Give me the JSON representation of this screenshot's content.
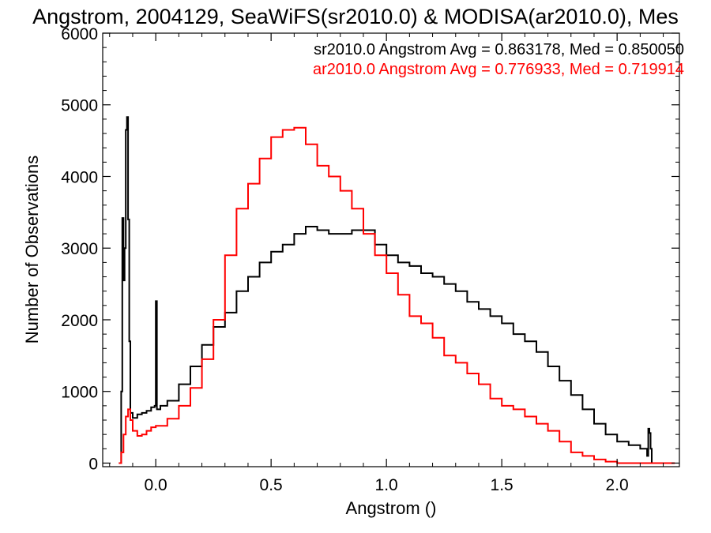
{
  "chart_data": {
    "type": "line",
    "title": "Angstrom, 2004129, SeaWiFS(sr2010.0) & MODISA(ar2010.0), Mes",
    "xlabel": "Angstrom ()",
    "ylabel": "Number of Observations",
    "xlim": [
      -0.23,
      2.27
    ],
    "ylim": [
      -50,
      6000
    ],
    "x_ticks": [
      "0.0",
      "0.5",
      "1.0",
      "1.5",
      "2.0"
    ],
    "y_ticks": [
      "0",
      "1000",
      "2000",
      "3000",
      "4000",
      "5000",
      "6000"
    ],
    "grid": false,
    "annotations": [
      {
        "text": "sr2010.0 Angstrom Avg = 0.863178, Med = 0.850050",
        "color": "#000000"
      },
      {
        "text": "ar2010.0 Angstrom Avg = 0.776933, Med = 0.719914",
        "color": "#ff0000"
      }
    ],
    "series": [
      {
        "color": "#000000",
        "x": [
          -0.16,
          -0.15,
          -0.145,
          -0.14,
          -0.135,
          -0.13,
          -0.125,
          -0.12,
          -0.115,
          -0.11,
          -0.1,
          -0.08,
          -0.06,
          -0.04,
          -0.02,
          -0.005,
          0.0,
          0.005,
          0.02,
          0.05,
          0.1,
          0.15,
          0.2,
          0.25,
          0.3,
          0.35,
          0.4,
          0.45,
          0.5,
          0.55,
          0.6,
          0.65,
          0.7,
          0.75,
          0.8,
          0.85,
          0.9,
          0.95,
          1.0,
          1.05,
          1.1,
          1.15,
          1.2,
          1.25,
          1.3,
          1.35,
          1.4,
          1.45,
          1.5,
          1.55,
          1.6,
          1.65,
          1.7,
          1.75,
          1.8,
          1.85,
          1.9,
          1.95,
          2.0,
          2.05,
          2.1,
          2.13,
          2.135,
          2.14,
          2.145,
          2.15
        ],
        "y": [
          0,
          1000,
          3420,
          2550,
          3000,
          4650,
          4830,
          3400,
          1700,
          700,
          630,
          680,
          700,
          730,
          780,
          800,
          2260,
          750,
          800,
          870,
          1100,
          1350,
          1650,
          1900,
          2100,
          2400,
          2600,
          2800,
          2950,
          3050,
          3200,
          3300,
          3250,
          3200,
          3200,
          3250,
          3250,
          3050,
          2900,
          2800,
          2750,
          2650,
          2600,
          2500,
          2400,
          2250,
          2150,
          2050,
          1950,
          1800,
          1700,
          1550,
          1350,
          1150,
          950,
          750,
          550,
          400,
          300,
          250,
          200,
          100,
          480,
          420,
          200,
          0
        ]
      },
      {
        "color": "#ff0000",
        "x": [
          -0.16,
          -0.15,
          -0.14,
          -0.13,
          -0.12,
          -0.11,
          -0.1,
          -0.08,
          -0.06,
          -0.04,
          -0.02,
          0.0,
          0.05,
          0.1,
          0.15,
          0.2,
          0.25,
          0.3,
          0.35,
          0.4,
          0.45,
          0.5,
          0.55,
          0.6,
          0.65,
          0.7,
          0.75,
          0.8,
          0.85,
          0.9,
          0.95,
          1.0,
          1.05,
          1.1,
          1.15,
          1.2,
          1.25,
          1.3,
          1.35,
          1.4,
          1.45,
          1.5,
          1.55,
          1.6,
          1.65,
          1.7,
          1.75,
          1.8,
          1.85,
          1.9,
          1.95,
          2.0,
          2.05,
          2.1,
          2.15,
          2.2,
          2.25
        ],
        "y": [
          0,
          150,
          400,
          650,
          750,
          600,
          450,
          380,
          400,
          450,
          500,
          520,
          620,
          800,
          1050,
          1450,
          2000,
          2900,
          3550,
          3900,
          4250,
          4550,
          4650,
          4680,
          4450,
          4150,
          4000,
          3800,
          3550,
          3200,
          2900,
          2650,
          2350,
          2050,
          1950,
          1750,
          1500,
          1400,
          1250,
          1100,
          900,
          800,
          750,
          650,
          550,
          450,
          300,
          150,
          100,
          50,
          20,
          0,
          0,
          0,
          0,
          0,
          0
        ]
      }
    ]
  }
}
